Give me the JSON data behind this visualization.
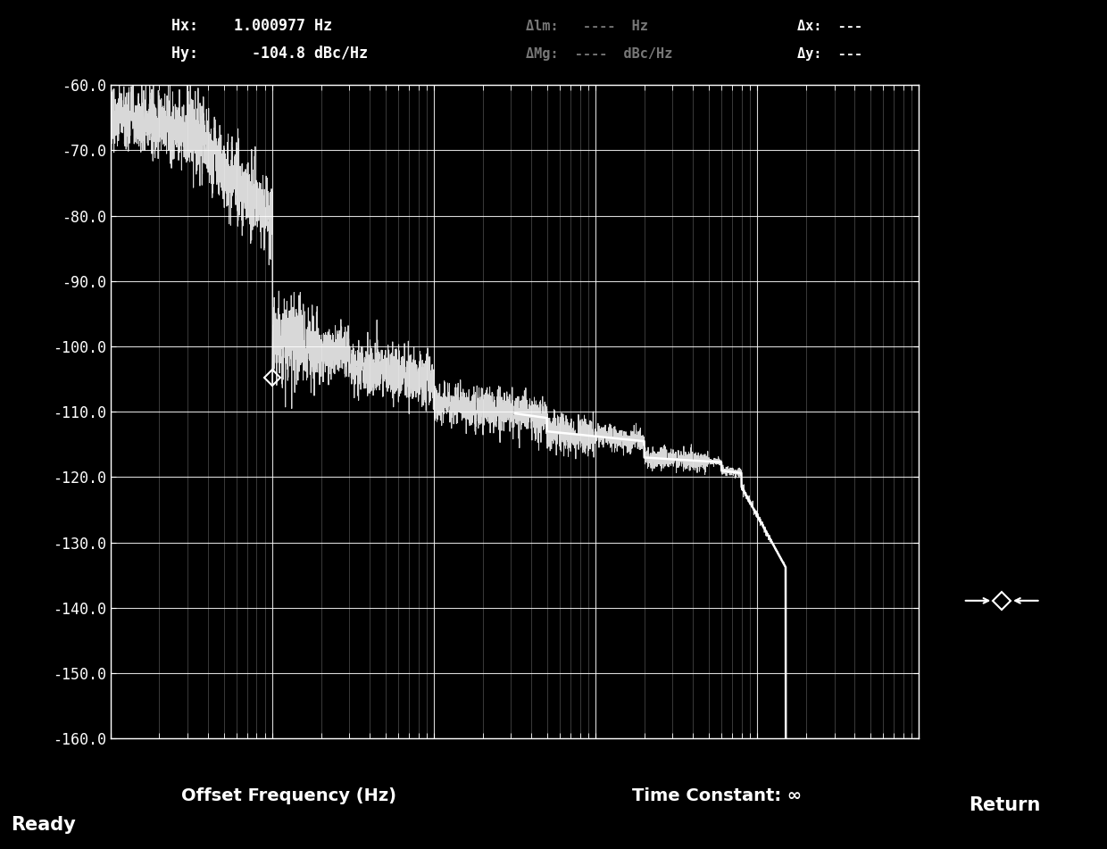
{
  "background_color": "#000000",
  "plot_bg_color": "#000000",
  "grid_color": "#ffffff",
  "line_color": "#ffffff",
  "text_color": "#ffffff",
  "xlabel": "Offset Frequency (Hz)",
  "xlabel2": "Time Constant: ∞",
  "ylim": [
    -160.0,
    -60.0
  ],
  "yticks": [
    -60,
    -70,
    -80,
    -90,
    -100,
    -110,
    -120,
    -130,
    -140,
    -150,
    -160
  ],
  "xtick_values": [
    0.1,
    1.0,
    10.0,
    100.0,
    1000.0,
    10000.0
  ],
  "ready_text": "Ready",
  "return_text": "Return",
  "marker_x": 1.000977,
  "marker_y": -104.8,
  "hx_label": "Hx:    1.000977 Hz",
  "hy_label": "Hy:      -104.8 dBc/Hz",
  "mid_label1": "Δlm:   ----  Hz",
  "mid_label2": "ΔMg:  ----  dBc/Hz",
  "dx_label": "Δx:  ---",
  "dy_label": "Δy:  ---"
}
